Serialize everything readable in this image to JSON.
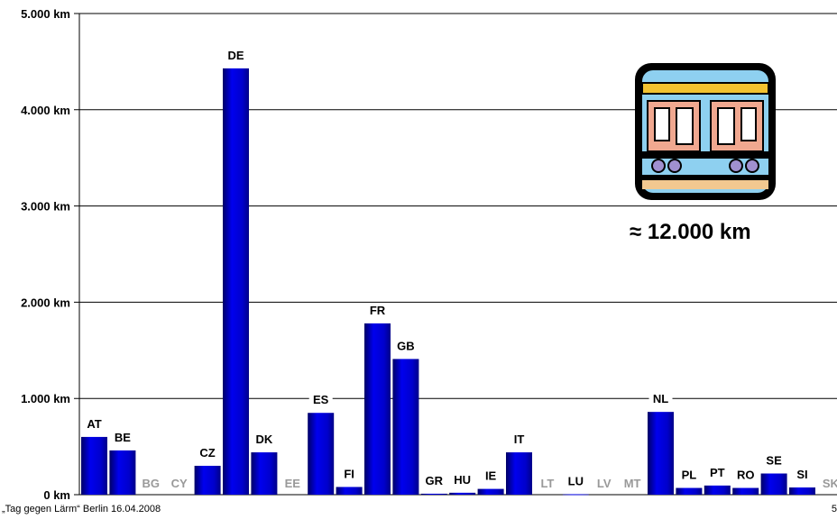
{
  "chart_data": {
    "type": "bar",
    "title": "",
    "xlabel": "",
    "ylabel": "",
    "ylim": [
      0,
      5000
    ],
    "grid": true,
    "ytick_labels": [
      "0 km",
      "1.000 km",
      "2.000 km",
      "3.000 km",
      "4.000 km",
      "5.000 km"
    ],
    "ytick_values": [
      0,
      1000,
      2000,
      3000,
      4000,
      5000
    ],
    "categories": [
      "AT",
      "BE",
      "BG",
      "CY",
      "CZ",
      "DE",
      "DK",
      "EE",
      "ES",
      "FI",
      "FR",
      "GB",
      "GR",
      "HU",
      "IE",
      "IT",
      "LT",
      "LU",
      "LV",
      "MT",
      "NL",
      "PL",
      "PT",
      "RO",
      "SE",
      "SI",
      "SK"
    ],
    "values": [
      600,
      460,
      0,
      0,
      300,
      4430,
      440,
      0,
      850,
      80,
      1780,
      1410,
      10,
      20,
      60,
      440,
      0,
      5,
      0,
      0,
      860,
      70,
      95,
      70,
      220,
      75,
      0
    ],
    "label_colors": {
      "has_data": "#000000",
      "no_data": "#999999"
    },
    "bar_color": "#0000cc"
  },
  "annotation": "≈ 12.000 km",
  "footer": "„Tag gegen Lärm“ Berlin 16.04.2008",
  "page_number": "5",
  "image": {
    "icon": "train-car-icon"
  }
}
